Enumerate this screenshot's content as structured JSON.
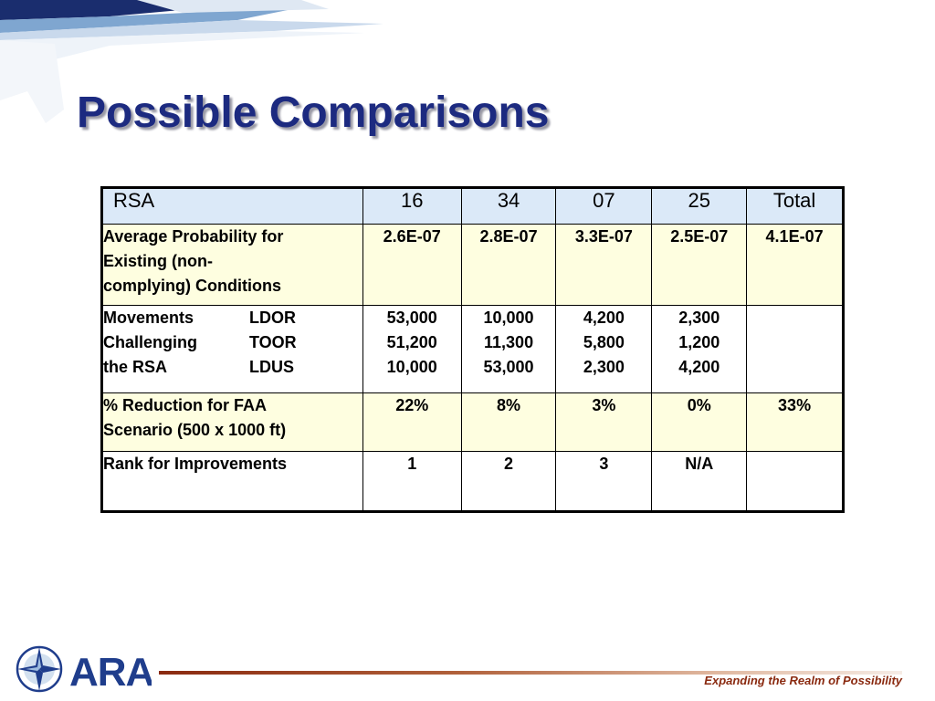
{
  "title": "Possible Comparisons",
  "table": {
    "header": [
      "RSA",
      "16",
      "34",
      "07",
      "25",
      "Total"
    ],
    "rows": {
      "avg_prob": {
        "label_lines": [
          "Average Probability for",
          "Existing (non-",
          "complying) Conditions"
        ],
        "values": [
          "2.6E-07",
          "2.8E-07",
          "3.3E-07",
          "2.5E-07",
          "4.1E-07"
        ]
      },
      "movements": {
        "label_left": [
          "Movements",
          "Challenging",
          "the RSA"
        ],
        "label_right": [
          "LDOR",
          "TOOR",
          "LDUS"
        ],
        "values": [
          [
            "53,000",
            "51,200",
            "10,000"
          ],
          [
            "10,000",
            "11,300",
            "53,000"
          ],
          [
            "4,200",
            "5,800",
            "2,300"
          ],
          [
            "2,300",
            "1,200",
            "4,200"
          ],
          []
        ]
      },
      "reduction": {
        "label_lines": [
          "% Reduction for FAA",
          "Scenario (500 x 1000 ft)"
        ],
        "values": [
          "22%",
          "8%",
          "3%",
          "0%",
          "33%"
        ]
      },
      "rank": {
        "label_lines": [
          "Rank for Improvements"
        ],
        "values": [
          "1",
          "2",
          "3",
          "N/A",
          ""
        ]
      }
    }
  },
  "footer": {
    "logo_text": "ARA",
    "tagline": "Expanding the Realm of Possibility"
  },
  "colors": {
    "title": "#1c2a80",
    "header_fill": "#dbe9f8",
    "yellow_fill": "#fefee0",
    "footer_accent": "#8a2a10",
    "logo_blue": "#1f3d8c"
  }
}
